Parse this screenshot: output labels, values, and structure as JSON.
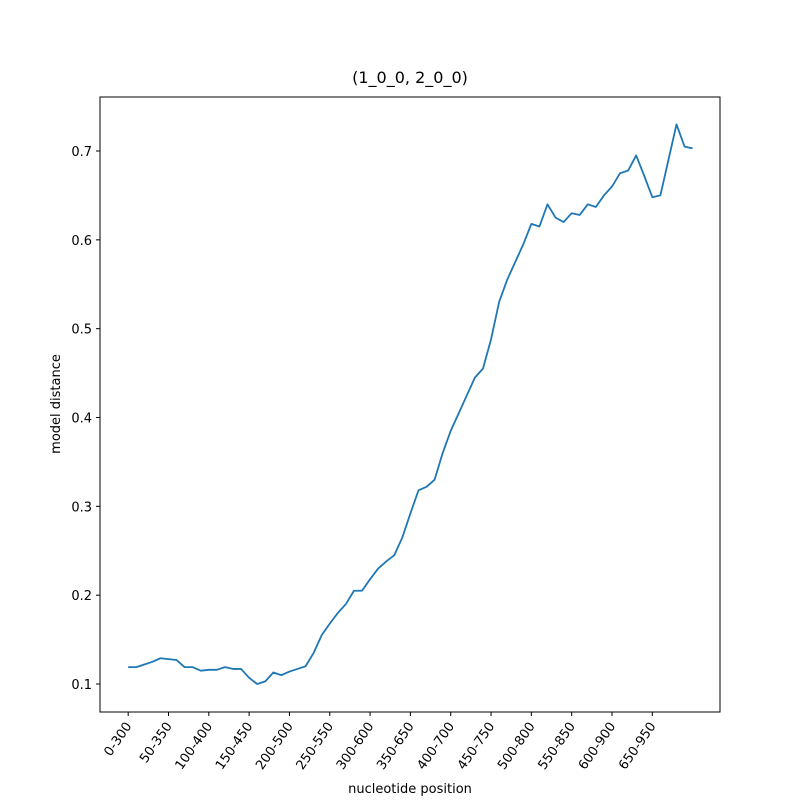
{
  "chart_data": {
    "type": "line",
    "title": "(1_0_0, 2_0_0)",
    "xlabel": "nucleotide position",
    "ylabel": "model distance",
    "x": [
      0,
      10,
      20,
      30,
      40,
      50,
      60,
      70,
      80,
      90,
      100,
      110,
      120,
      130,
      140,
      150,
      160,
      170,
      180,
      190,
      200,
      210,
      220,
      230,
      240,
      250,
      260,
      270,
      280,
      290,
      300,
      310,
      320,
      330,
      340,
      350,
      360,
      370,
      380,
      390,
      400,
      410,
      420,
      430,
      440,
      450,
      460,
      470,
      480,
      490,
      500,
      510,
      520,
      530,
      540,
      550,
      560,
      570,
      580,
      590,
      600,
      610,
      620,
      630,
      640,
      650,
      660,
      670,
      680,
      690,
      700
    ],
    "values": [
      0.119,
      0.119,
      0.122,
      0.125,
      0.129,
      0.128,
      0.127,
      0.119,
      0.119,
      0.115,
      0.116,
      0.116,
      0.119,
      0.117,
      0.117,
      0.107,
      0.1,
      0.103,
      0.113,
      0.11,
      0.114,
      0.117,
      0.12,
      0.135,
      0.155,
      0.168,
      0.18,
      0.19,
      0.205,
      0.205,
      0.218,
      0.23,
      0.238,
      0.245,
      0.265,
      0.292,
      0.318,
      0.322,
      0.33,
      0.36,
      0.385,
      0.405,
      0.425,
      0.445,
      0.455,
      0.488,
      0.53,
      0.555,
      0.575,
      0.595,
      0.618,
      0.615,
      0.64,
      0.625,
      0.62,
      0.63,
      0.628,
      0.64,
      0.637,
      0.65,
      0.66,
      0.675,
      0.678,
      0.695,
      0.672,
      0.648,
      0.65,
      0.69,
      0.73,
      0.705,
      0.703
    ],
    "color": "#1f77b4",
    "xlim": [
      -34.95,
      733.95
    ],
    "ylim": [
      0.0685,
      0.7608
    ],
    "xticks": [
      {
        "value": 0,
        "label": "0-300"
      },
      {
        "value": 50,
        "label": "50-350"
      },
      {
        "value": 100,
        "label": "100-400"
      },
      {
        "value": 150,
        "label": "150-450"
      },
      {
        "value": 200,
        "label": "200-500"
      },
      {
        "value": 250,
        "label": "250-550"
      },
      {
        "value": 300,
        "label": "300-600"
      },
      {
        "value": 350,
        "label": "350-650"
      },
      {
        "value": 400,
        "label": "400-700"
      },
      {
        "value": 450,
        "label": "450-750"
      },
      {
        "value": 500,
        "label": "500-800"
      },
      {
        "value": 550,
        "label": "550-850"
      },
      {
        "value": 600,
        "label": "600-900"
      },
      {
        "value": 650,
        "label": "650-950"
      }
    ],
    "yticks": [
      0.1,
      0.2,
      0.3,
      0.4,
      0.5,
      0.6,
      0.7
    ]
  }
}
